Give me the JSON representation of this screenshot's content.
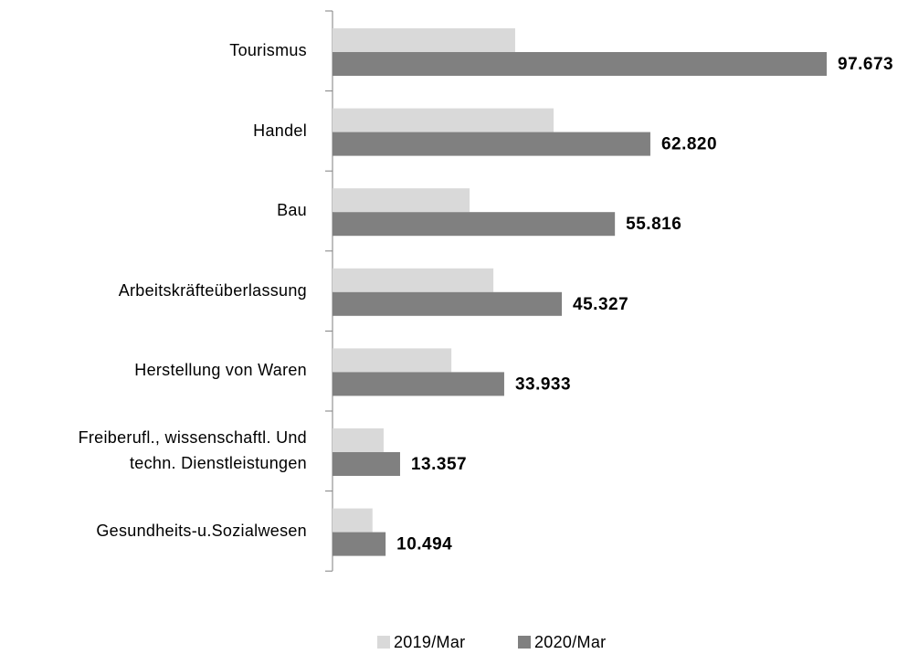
{
  "chart_data": {
    "type": "bar",
    "orientation": "horizontal",
    "categories": [
      "Tourismus",
      "Handel",
      "Bau",
      "Arbeitskräfteüberlassung",
      "Herstellung von Waren",
      "Freiberufl., wissenschaftl. Und\ntechn. Dienstleistungen",
      "Gesundheits-u.Sozialwesen"
    ],
    "series": [
      {
        "name": "2019/Mar",
        "color": "#d9d9d9",
        "values": [
          36100,
          43700,
          27100,
          31800,
          23500,
          10100,
          7900
        ]
      },
      {
        "name": "2020/Mar",
        "color": "#808080",
        "values": [
          97673,
          62820,
          55816,
          45327,
          33933,
          13357,
          10494
        ],
        "value_labels": [
          "97.673",
          "62.820",
          "55.816",
          "45.327",
          "33.933",
          "13.357",
          "10.494"
        ]
      }
    ],
    "legend": "bottom"
  }
}
